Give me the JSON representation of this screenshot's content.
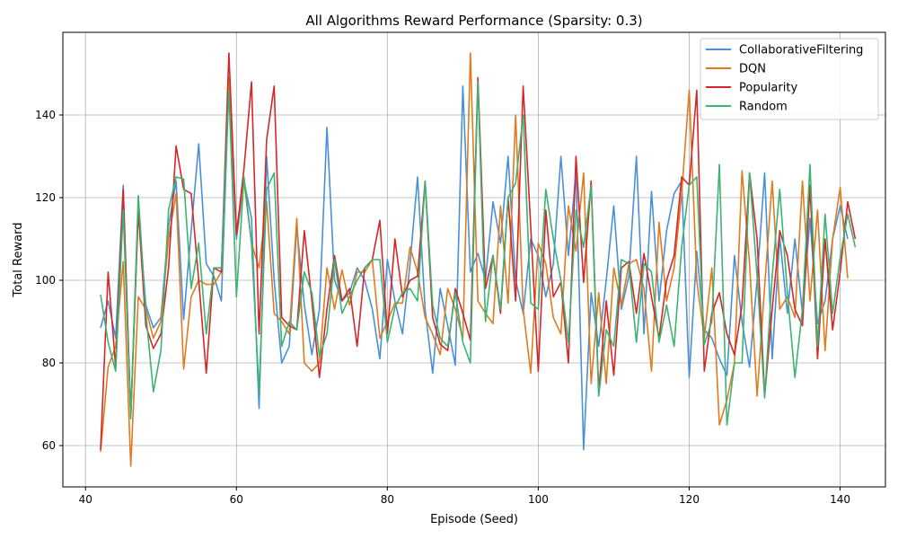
{
  "chart_data": {
    "type": "line",
    "title": "All Algorithms Reward Performance (Sparsity: 0.3)",
    "xlabel": "Episode (Seed)",
    "ylabel": "Total Reward",
    "xlim": [
      37,
      146
    ],
    "ylim": [
      50,
      160
    ],
    "xticks": [
      40,
      60,
      80,
      100,
      120,
      140
    ],
    "yticks": [
      60,
      80,
      100,
      120,
      140
    ],
    "grid": true,
    "legend_position": "top-right",
    "x_start": 42,
    "x_end": 141,
    "series": [
      {
        "name": "CollaborativeFiltering",
        "color": "#4a90d9",
        "values": [
          88.5,
          95,
          86,
          123,
          67,
          117,
          94,
          88.5,
          91,
          113,
          124,
          90.5,
          112,
          133,
          104,
          101,
          95,
          147,
          110,
          124,
          115,
          69,
          130,
          100,
          80,
          84,
          113,
          94,
          82,
          93,
          137,
          100,
          95,
          97,
          103,
          100,
          93,
          81,
          105,
          95,
          87,
          104,
          125,
          93,
          77.5,
          98,
          89,
          79.5,
          147,
          102,
          106.5,
          100,
          119,
          109,
          130,
          100,
          92,
          110,
          106,
          96,
          104,
          130,
          106,
          126,
          59,
          97,
          84,
          100,
          118,
          93,
          101,
          130,
          87,
          121.5,
          95,
          112,
          121,
          124,
          76.5,
          107,
          88,
          86,
          81,
          77,
          106,
          90,
          79,
          100,
          126,
          81,
          110.5,
          92,
          110,
          92,
          115,
          89.5,
          95,
          110,
          118,
          110
        ]
      },
      {
        "name": "DQN",
        "color": "#e07b20",
        "values": [
          58.5,
          79,
          84,
          104.5,
          55,
          96,
          93,
          86,
          90,
          110,
          121,
          78.5,
          96,
          100,
          99,
          99,
          102,
          149,
          112,
          124,
          109,
          103,
          119,
          92,
          90,
          87,
          115,
          80,
          78,
          80,
          103,
          93,
          102.5,
          94,
          102,
          102,
          105,
          86,
          90,
          94.5,
          94.5,
          108,
          102,
          91,
          87,
          82,
          98,
          93,
          86,
          155,
          95,
          92,
          89.5,
          118,
          94.5,
          140,
          93,
          77.5,
          109,
          104,
          91,
          87,
          118,
          107,
          126,
          75,
          97,
          75,
          103,
          94,
          104,
          105,
          98,
          78,
          114,
          95,
          103,
          121,
          146,
          100,
          86,
          103,
          65,
          71,
          80,
          126.5,
          104,
          72,
          98.5,
          124,
          93,
          96,
          91,
          124,
          95,
          117,
          83,
          110,
          122.5,
          100.5
        ]
      },
      {
        "name": "Popularity",
        "color": "#d62728",
        "values": [
          59,
          102,
          79,
          122,
          67,
          117,
          89,
          83.5,
          87,
          103,
          132.5,
          122,
          121,
          100,
          77.5,
          103,
          102,
          155,
          111,
          127,
          148,
          87,
          134,
          147,
          91,
          89,
          88,
          112,
          95,
          76.5,
          93,
          106,
          95,
          98,
          84,
          103,
          105,
          114.5,
          87,
          110,
          96,
          100,
          101,
          124,
          91,
          84.5,
          83,
          98,
          92,
          85.5,
          149,
          98,
          106,
          92,
          120,
          95,
          147,
          113,
          78,
          117,
          96,
          99.5,
          80,
          130,
          99.5,
          124,
          73,
          95,
          77,
          103,
          104.5,
          92,
          106.5,
          96,
          86,
          100,
          106,
          125,
          123,
          146,
          78,
          92,
          97,
          87,
          82,
          94,
          126,
          110,
          72,
          93,
          112,
          106,
          93,
          89,
          123,
          81,
          110,
          88,
          102,
          119,
          110
        ]
      },
      {
        "name": "Random",
        "color": "#3cb371",
        "values": [
          96.5,
          85,
          78,
          117,
          66.5,
          120.5,
          92,
          73,
          83,
          117,
          125,
          124.5,
          98,
          109,
          87,
          103,
          103,
          146,
          96,
          125,
          109,
          73,
          122,
          126,
          84,
          90,
          88,
          102,
          97,
          81.5,
          87,
          105,
          92,
          96,
          100,
          103,
          105,
          105,
          85,
          93.5,
          97,
          98,
          95,
          124,
          94,
          86,
          84,
          97,
          85,
          80,
          148,
          90,
          106,
          93,
          120,
          123.5,
          140,
          94.5,
          93,
          122,
          110,
          100,
          85,
          117,
          108,
          123,
          72,
          88,
          84,
          105,
          104,
          85,
          104,
          102,
          85,
          94,
          84,
          108,
          123,
          125,
          84.5,
          90,
          128,
          65,
          80,
          80,
          126,
          101,
          71.5,
          101,
          122,
          97,
          76.5,
          93,
          128,
          84,
          116,
          92,
          105.5,
          116,
          108
        ]
      }
    ]
  }
}
